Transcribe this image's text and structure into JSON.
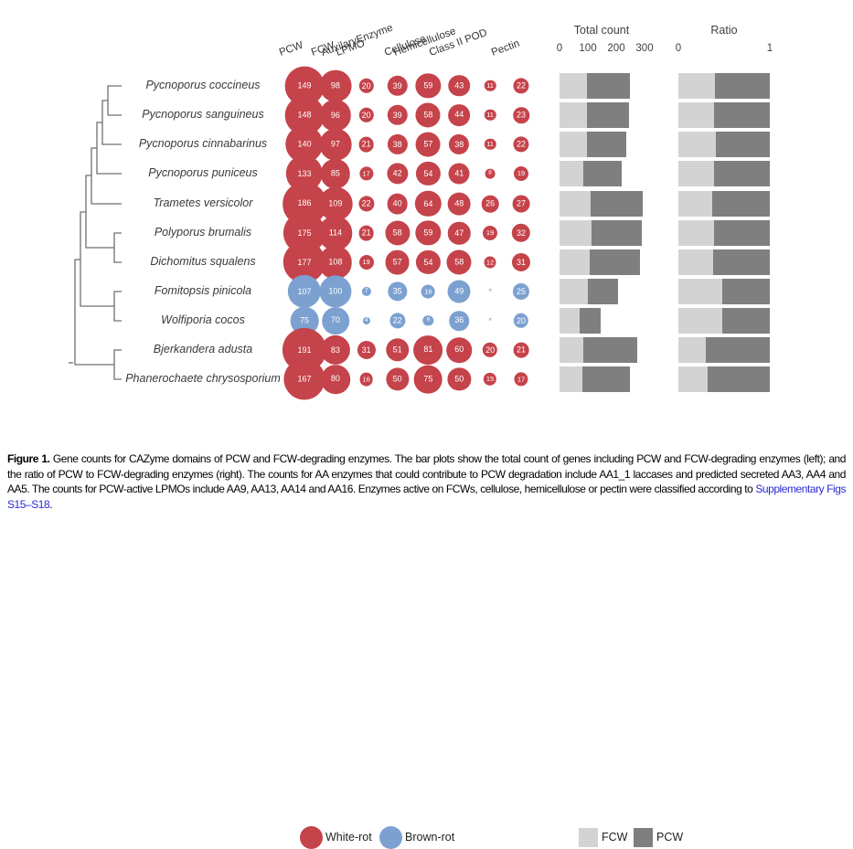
{
  "chart_data": {
    "type": "bubble-matrix",
    "columns": [
      "PCW",
      "FCW",
      "LPMO",
      "AuxilaryEnzyme",
      "Cellulose",
      "Hemicellulose",
      "Class II POD",
      "Pectin"
    ],
    "rows": [
      {
        "species": "Pycnoporus coccineus",
        "rot": "white-rot",
        "counts": [
          149,
          98,
          20,
          39,
          59,
          43,
          11,
          22
        ]
      },
      {
        "species": "Pycnoporus sanguineus",
        "rot": "white-rot",
        "counts": [
          148,
          96,
          20,
          39,
          58,
          44,
          11,
          23
        ]
      },
      {
        "species": "Pycnoporus cinnabarinus",
        "rot": "white-rot",
        "counts": [
          140,
          97,
          21,
          38,
          57,
          38,
          11,
          22
        ]
      },
      {
        "species": "Pycnoporus puniceus",
        "rot": "white-rot",
        "counts": [
          133,
          85,
          17,
          42,
          54,
          41,
          8,
          19
        ]
      },
      {
        "species": "Trametes versicolor",
        "rot": "white-rot",
        "counts": [
          186,
          109,
          22,
          40,
          64,
          48,
          26,
          27
        ]
      },
      {
        "species": "Polyporus brumalis",
        "rot": "white-rot",
        "counts": [
          175,
          114,
          21,
          58,
          59,
          47,
          19,
          32
        ]
      },
      {
        "species": "Dichomitus squalens",
        "rot": "white-rot",
        "counts": [
          177,
          108,
          19,
          57,
          54,
          58,
          12,
          31
        ]
      },
      {
        "species": "Fomitopsis pinicola",
        "rot": "brown-rot",
        "counts": [
          107,
          100,
          7,
          35,
          16,
          49,
          "*",
          25
        ]
      },
      {
        "species": "Wolfiporia cocos",
        "rot": "brown-rot",
        "counts": [
          75,
          70,
          4,
          22,
          9,
          36,
          "*",
          20
        ]
      },
      {
        "species": "Bjerkandera adusta",
        "rot": "white-rot",
        "counts": [
          191,
          83,
          31,
          51,
          81,
          60,
          20,
          21
        ]
      },
      {
        "species": "Phanerochaete chrysosporium",
        "rot": "white-rot",
        "counts": [
          167,
          80,
          16,
          50,
          75,
          50,
          15,
          17
        ]
      }
    ],
    "bar_panels": [
      {
        "title": "Total count",
        "ticks": [
          "0",
          "100",
          "200",
          "300"
        ],
        "tick_values": [
          0,
          100,
          200,
          300
        ],
        "stack_order": [
          "FCW",
          "PCW"
        ],
        "description": "stacked count of FCW (light) and PCW (dark) degrading enzyme genes per species"
      },
      {
        "title": "Ratio",
        "ticks": [
          "0",
          "1"
        ],
        "tick_values": [
          0,
          1
        ],
        "stack_order": [
          "FCW",
          "PCW"
        ],
        "description": "fraction of FCW (light) vs PCW (dark) degrading enzyme genes per species"
      }
    ],
    "legend": {
      "white_rot": "White-rot",
      "brown_rot": "Brown-rot",
      "fcw": "FCW",
      "pcw": "PCW"
    },
    "colors": {
      "white_rot": "#c5434a",
      "brown_rot": "#7ca1d1",
      "fcw": "#d3d3d3",
      "pcw": "#7f7f7f"
    }
  },
  "caption": {
    "label": "Figure 1.",
    "body": " Gene counts for CAZyme domains of PCW and FCW-degrading enzymes. The bar plots show the total count of genes including PCW and FCW-degrading enzymes (left); and the ratio of PCW to FCW-degrading enzymes (right). The counts for AA enzymes that could contribute to PCW degradation include AA1_1 laccases and predicted secreted AA3, AA4 and AA5. The counts for PCW-active LPMOs include AA9, AA13, AA14 and AA16. Enzymes active on FCWs, cellulose, hemicellulose or pectin were classified according to ",
    "link": "Supplementary Figs S15–S18",
    "suffix": ".",
    "link_color": "#2a2ad5"
  }
}
